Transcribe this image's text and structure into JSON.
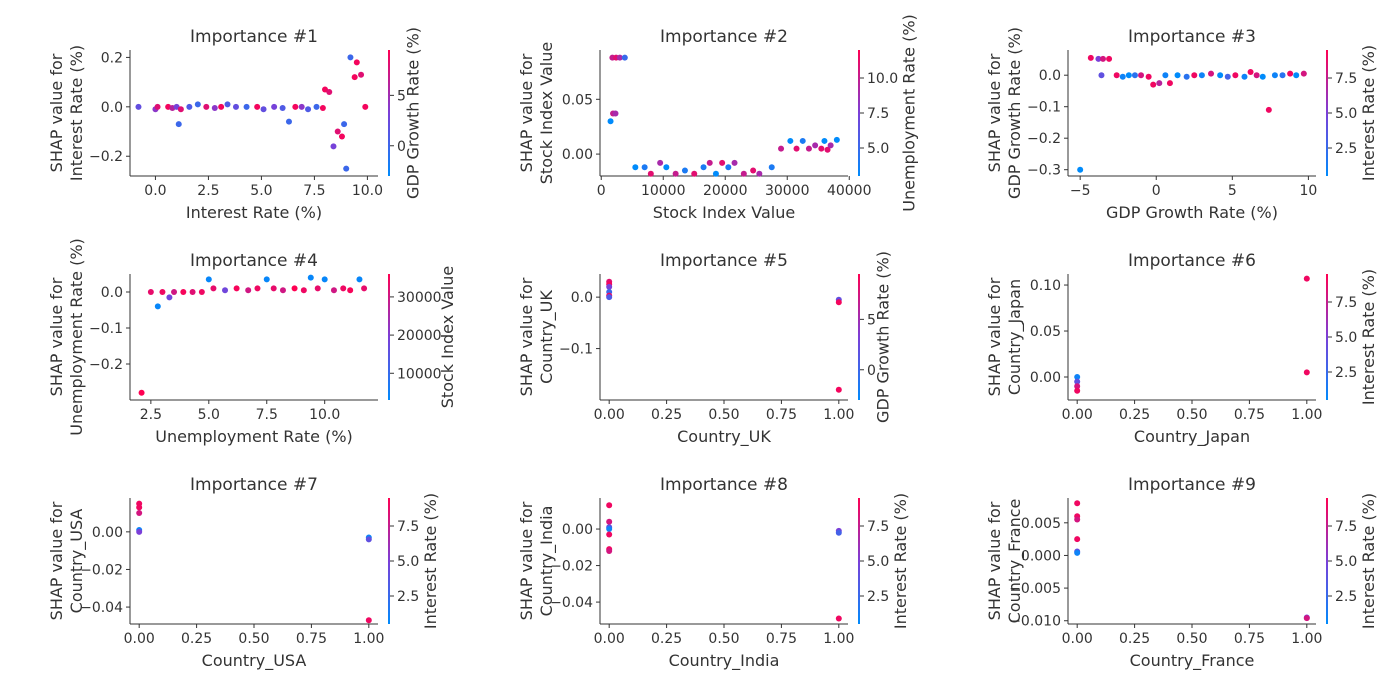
{
  "chart_data": [
    {
      "type": "scatter",
      "title": "Importance #1",
      "xlabel": "Interest Rate (%)",
      "ylabel": [
        "SHAP value for",
        "Interest Rate (%)"
      ],
      "xlim": [
        -1.2,
        10.5
      ],
      "ylim": [
        -0.28,
        0.23
      ],
      "xticks": [
        0,
        2.5,
        5,
        7.5,
        10
      ],
      "xtick_labels": [
        "0.0",
        "2.5",
        "5.0",
        "7.5",
        "10.0"
      ],
      "yticks": [
        -0.2,
        0,
        0.2
      ],
      "ytick_labels": [
        "−0.2",
        "0.0",
        "0.2"
      ],
      "colorbar": {
        "label": "GDP Growth Rate (%)",
        "min": -3,
        "max": 9.5,
        "ticks": [
          0,
          5
        ],
        "tick_labels": [
          "0",
          "5"
        ]
      },
      "points": [
        [
          -0.8,
          0.0,
          2
        ],
        [
          0.0,
          -0.01,
          4
        ],
        [
          0.1,
          0.0,
          8
        ],
        [
          0.6,
          0.0,
          9
        ],
        [
          0.8,
          -0.005,
          6
        ],
        [
          1.0,
          0.0,
          3
        ],
        [
          1.2,
          -0.01,
          8
        ],
        [
          1.1,
          -0.07,
          0
        ],
        [
          1.6,
          0.0,
          1
        ],
        [
          2.0,
          0.01,
          0
        ],
        [
          2.4,
          0.0,
          8
        ],
        [
          2.8,
          -0.005,
          4
        ],
        [
          3.1,
          0.0,
          9
        ],
        [
          3.4,
          0.01,
          1
        ],
        [
          3.8,
          0.0,
          2
        ],
        [
          4.3,
          0.0,
          0
        ],
        [
          4.8,
          0.0,
          9
        ],
        [
          5.1,
          -0.01,
          2
        ],
        [
          5.6,
          0.0,
          3
        ],
        [
          6.0,
          -0.005,
          1
        ],
        [
          6.3,
          -0.06,
          0
        ],
        [
          6.6,
          0.0,
          9
        ],
        [
          6.9,
          0.0,
          4
        ],
        [
          7.2,
          -0.01,
          1
        ],
        [
          7.6,
          0.0,
          0
        ],
        [
          7.9,
          -0.005,
          9
        ],
        [
          8.0,
          0.07,
          9
        ],
        [
          8.2,
          0.06,
          8
        ],
        [
          8.4,
          -0.16,
          3
        ],
        [
          8.6,
          -0.1,
          8
        ],
        [
          8.8,
          -0.12,
          9
        ],
        [
          8.9,
          -0.07,
          0
        ],
        [
          9.0,
          -0.25,
          0
        ],
        [
          9.2,
          0.2,
          0
        ],
        [
          9.4,
          0.12,
          9
        ],
        [
          9.5,
          0.18,
          9
        ],
        [
          9.7,
          0.13,
          8
        ],
        [
          9.9,
          0.0,
          9
        ]
      ]
    },
    {
      "type": "scatter",
      "title": "Importance #2",
      "xlabel": "Stock Index Value",
      "ylabel": [
        "SHAP value for",
        "Stock Index Value"
      ],
      "xlim": [
        -200,
        39800
      ],
      "ylim": [
        -0.02,
        0.095
      ],
      "xticks": [
        0,
        10000,
        20000,
        30000,
        40000
      ],
      "xtick_labels": [
        "0",
        "10000",
        "20000",
        "30000",
        "40000"
      ],
      "yticks": [
        0,
        0.05
      ],
      "ytick_labels": [
        "0.00",
        "0.05"
      ],
      "colorbar": {
        "label": "Unemployment Rate (%)",
        "min": 3,
        "max": 12,
        "ticks": [
          5,
          7.5,
          10
        ],
        "tick_labels": [
          "5.0",
          "7.5",
          "10.0"
        ]
      },
      "points": [
        [
          1800,
          0.088,
          10
        ],
        [
          2400,
          0.088,
          11
        ],
        [
          3000,
          0.088,
          9
        ],
        [
          3800,
          0.088,
          5
        ],
        [
          1500,
          0.03,
          3
        ],
        [
          1900,
          0.037,
          10
        ],
        [
          2300,
          0.037,
          9
        ],
        [
          5500,
          -0.012,
          3
        ],
        [
          7000,
          -0.012,
          4
        ],
        [
          8000,
          -0.018,
          11
        ],
        [
          9500,
          -0.008,
          9
        ],
        [
          10500,
          -0.012,
          3
        ],
        [
          12000,
          -0.018,
          10
        ],
        [
          13500,
          -0.015,
          4
        ],
        [
          15000,
          -0.018,
          11
        ],
        [
          16500,
          -0.012,
          4
        ],
        [
          17500,
          -0.008,
          10
        ],
        [
          18500,
          -0.018,
          3
        ],
        [
          19500,
          -0.008,
          11
        ],
        [
          20500,
          -0.012,
          4
        ],
        [
          21500,
          -0.008,
          9
        ],
        [
          23000,
          -0.018,
          10
        ],
        [
          24500,
          -0.015,
          11
        ],
        [
          25500,
          -0.018,
          9
        ],
        [
          27500,
          -0.012,
          4
        ],
        [
          29000,
          0.005,
          10
        ],
        [
          30500,
          0.012,
          3
        ],
        [
          31500,
          0.005,
          11
        ],
        [
          32500,
          0.012,
          4
        ],
        [
          33500,
          0.005,
          10
        ],
        [
          34500,
          0.008,
          9
        ],
        [
          35500,
          0.005,
          11
        ],
        [
          36000,
          0.012,
          3
        ],
        [
          36500,
          0.004,
          11
        ],
        [
          37000,
          0.008,
          9
        ],
        [
          38000,
          0.013,
          3
        ]
      ]
    },
    {
      "type": "scatter",
      "title": "Importance #3",
      "xlabel": "GDP Growth Rate (%)",
      "ylabel": [
        "SHAP value for",
        "GDP Growth Rate (%)"
      ],
      "xlim": [
        -5.8,
        10.5
      ],
      "ylim": [
        -0.32,
        0.08
      ],
      "xticks": [
        -5,
        0,
        5,
        10
      ],
      "xtick_labels": [
        "−5",
        "0",
        "5",
        "10"
      ],
      "yticks": [
        -0.3,
        -0.2,
        -0.1,
        0
      ],
      "ytick_labels": [
        "−0.3",
        "−0.2",
        "−0.1",
        "0.0"
      ],
      "colorbar": {
        "label": "Interest Rate (%)",
        "min": 0.5,
        "max": 9.5,
        "ticks": [
          2.5,
          5,
          7.5
        ],
        "tick_labels": [
          "2.5",
          "5.0",
          "7.5"
        ]
      },
      "points": [
        [
          -5,
          -0.3,
          0
        ],
        [
          -4.3,
          0.055,
          9
        ],
        [
          -3.8,
          0.052,
          5
        ],
        [
          -3.5,
          0.052,
          8
        ],
        [
          -3.1,
          0.052,
          9
        ],
        [
          -3.6,
          0.0,
          4
        ],
        [
          -2.6,
          0.0,
          9
        ],
        [
          -2.2,
          -0.005,
          1
        ],
        [
          -1.8,
          0.0,
          0
        ],
        [
          -1.4,
          0.0,
          2
        ],
        [
          -1.0,
          0.0,
          8
        ],
        [
          -0.5,
          -0.005,
          9
        ],
        [
          -0.2,
          -0.03,
          9
        ],
        [
          0.2,
          -0.025,
          7
        ],
        [
          0.6,
          0.0,
          1
        ],
        [
          0.9,
          -0.025,
          9
        ],
        [
          1.4,
          0.0,
          0
        ],
        [
          2.0,
          -0.005,
          2
        ],
        [
          2.5,
          0.0,
          9
        ],
        [
          3.0,
          0.0,
          1
        ],
        [
          3.6,
          0.005,
          8
        ],
        [
          4.2,
          0.0,
          0
        ],
        [
          4.7,
          -0.005,
          3
        ],
        [
          5.2,
          0.0,
          9
        ],
        [
          5.8,
          -0.005,
          1
        ],
        [
          6.2,
          0.01,
          9
        ],
        [
          6.6,
          0.0,
          8
        ],
        [
          7.0,
          -0.005,
          0
        ],
        [
          7.4,
          -0.11,
          9
        ],
        [
          7.8,
          0.0,
          1
        ],
        [
          8.3,
          0.0,
          2
        ],
        [
          8.8,
          0.005,
          9
        ],
        [
          9.2,
          0.0,
          0
        ],
        [
          9.7,
          0.005,
          8
        ]
      ]
    },
    {
      "type": "scatter",
      "title": "Importance #4",
      "xlabel": "Unemployment Rate (%)",
      "ylabel": [
        "SHAP value for",
        "Unemployment Rate (%)"
      ],
      "xlim": [
        1.6,
        12.3
      ],
      "ylim": [
        -0.3,
        0.05
      ],
      "xticks": [
        2.5,
        5,
        7.5,
        10
      ],
      "xtick_labels": [
        "2.5",
        "5.0",
        "7.5",
        "10.0"
      ],
      "yticks": [
        -0.2,
        -0.1,
        0
      ],
      "ytick_labels": [
        "−0.2",
        "−0.1",
        "0.0"
      ],
      "colorbar": {
        "label": "Stock Index Value",
        "min": 3000,
        "max": 36000,
        "ticks": [
          10000,
          20000,
          30000
        ],
        "tick_labels": [
          "10000",
          "20000",
          "30000"
        ]
      },
      "points": [
        [
          2.1,
          -0.28,
          36000
        ],
        [
          2.5,
          0.0,
          33000
        ],
        [
          2.8,
          -0.04,
          4000
        ],
        [
          3.0,
          0.0,
          34000
        ],
        [
          3.3,
          -0.015,
          18000
        ],
        [
          3.5,
          0.0,
          30000
        ],
        [
          3.9,
          0.0,
          35000
        ],
        [
          4.3,
          0.0,
          32000
        ],
        [
          4.7,
          0.0,
          34000
        ],
        [
          5.0,
          0.035,
          4000
        ],
        [
          5.2,
          0.01,
          33000
        ],
        [
          5.7,
          0.005,
          18000
        ],
        [
          6.2,
          0.01,
          35000
        ],
        [
          6.7,
          0.005,
          30000
        ],
        [
          7.1,
          0.01,
          34000
        ],
        [
          7.5,
          0.035,
          4000
        ],
        [
          7.8,
          0.01,
          33000
        ],
        [
          8.2,
          0.005,
          30000
        ],
        [
          8.7,
          0.01,
          36000
        ],
        [
          9.1,
          0.005,
          34000
        ],
        [
          9.4,
          0.04,
          4000
        ],
        [
          9.7,
          0.01,
          33000
        ],
        [
          10.0,
          0.035,
          4000
        ],
        [
          10.4,
          0.005,
          30000
        ],
        [
          10.8,
          0.01,
          34000
        ],
        [
          11.1,
          0.005,
          35000
        ],
        [
          11.5,
          0.035,
          4000
        ],
        [
          11.7,
          0.01,
          33000
        ]
      ]
    },
    {
      "type": "scatter",
      "title": "Importance #5",
      "xlabel": "Country_UK",
      "ylabel": [
        "SHAP value for",
        "Country_UK"
      ],
      "xlim": [
        -0.04,
        1.04
      ],
      "ylim": [
        -0.2,
        0.045
      ],
      "xticks": [
        0,
        0.25,
        0.5,
        0.75,
        1
      ],
      "xtick_labels": [
        "0.00",
        "0.25",
        "0.50",
        "0.75",
        "1.00"
      ],
      "yticks": [
        -0.1,
        0
      ],
      "ytick_labels": [
        "−0.1",
        "0.0"
      ],
      "colorbar": {
        "label": "GDP Growth Rate (%)",
        "min": -3,
        "max": 9.5,
        "ticks": [
          0,
          5
        ],
        "tick_labels": [
          "0",
          "5"
        ]
      },
      "points": [
        [
          0,
          0.03,
          8
        ],
        [
          0,
          0.025,
          9
        ],
        [
          0,
          0.02,
          3
        ],
        [
          0,
          0.01,
          0
        ],
        [
          0,
          0.003,
          9
        ],
        [
          0,
          0.0,
          1
        ],
        [
          1,
          -0.005,
          2
        ],
        [
          1,
          -0.01,
          9
        ],
        [
          1,
          -0.18,
          9
        ]
      ]
    },
    {
      "type": "scatter",
      "title": "Importance #6",
      "xlabel": "Country_Japan",
      "ylabel": [
        "SHAP value for",
        "Country_Japan"
      ],
      "xlim": [
        -0.04,
        1.04
      ],
      "ylim": [
        -0.025,
        0.112
      ],
      "xticks": [
        0,
        0.25,
        0.5,
        0.75,
        1
      ],
      "xtick_labels": [
        "0.00",
        "0.25",
        "0.50",
        "0.75",
        "1.00"
      ],
      "yticks": [
        0,
        0.05,
        0.1
      ],
      "ytick_labels": [
        "0.00",
        "0.05",
        "0.10"
      ],
      "colorbar": {
        "label": "Interest Rate (%)",
        "min": 0.5,
        "max": 9.5,
        "ticks": [
          2.5,
          5,
          7.5
        ],
        "tick_labels": [
          "2.5",
          "5.0",
          "7.5"
        ]
      },
      "points": [
        [
          0,
          0.0,
          1
        ],
        [
          0,
          -0.005,
          4
        ],
        [
          0,
          -0.01,
          8
        ],
        [
          0,
          -0.015,
          9
        ],
        [
          1,
          0.107,
          9
        ],
        [
          1,
          0.005,
          9
        ]
      ]
    },
    {
      "type": "scatter",
      "title": "Importance #7",
      "xlabel": "Country_USA",
      "ylabel": [
        "SHAP value for",
        "Country_USA"
      ],
      "xlim": [
        -0.04,
        1.04
      ],
      "ylim": [
        -0.049,
        0.018
      ],
      "xticks": [
        0,
        0.25,
        0.5,
        0.75,
        1
      ],
      "xtick_labels": [
        "0.00",
        "0.25",
        "0.50",
        "0.75",
        "1.00"
      ],
      "yticks": [
        -0.04,
        -0.02,
        0
      ],
      "ytick_labels": [
        "−0.04",
        "−0.02",
        "0.00"
      ],
      "colorbar": {
        "label": "Interest Rate (%)",
        "min": 0.5,
        "max": 9.5,
        "ticks": [
          2.5,
          5,
          7.5
        ],
        "tick_labels": [
          "2.5",
          "5.0",
          "7.5"
        ]
      },
      "points": [
        [
          0,
          0.015,
          9
        ],
        [
          0,
          0.013,
          9
        ],
        [
          0,
          0.01,
          8
        ],
        [
          0,
          0.001,
          1
        ],
        [
          0,
          0.0,
          5
        ],
        [
          1,
          -0.003,
          1
        ],
        [
          1,
          -0.004,
          4
        ],
        [
          1,
          -0.047,
          9
        ]
      ]
    },
    {
      "type": "scatter",
      "title": "Importance #8",
      "xlabel": "Country_India",
      "ylabel": [
        "SHAP value for",
        "Country_India"
      ],
      "xlim": [
        -0.04,
        1.04
      ],
      "ylim": [
        -0.052,
        0.017
      ],
      "xticks": [
        0,
        0.25,
        0.5,
        0.75,
        1
      ],
      "xtick_labels": [
        "0.00",
        "0.25",
        "0.50",
        "0.75",
        "1.00"
      ],
      "yticks": [
        -0.04,
        -0.02,
        0
      ],
      "ytick_labels": [
        "−0.04",
        "−0.02",
        "0.00"
      ],
      "colorbar": {
        "label": "Interest Rate (%)",
        "min": 0.5,
        "max": 9.5,
        "ticks": [
          2.5,
          5,
          7.5
        ],
        "tick_labels": [
          "2.5",
          "5.0",
          "7.5"
        ]
      },
      "points": [
        [
          0,
          0.013,
          9
        ],
        [
          0,
          0.004,
          8
        ],
        [
          0,
          0.001,
          4
        ],
        [
          0,
          0.0,
          1
        ],
        [
          0,
          -0.003,
          9
        ],
        [
          0,
          -0.011,
          9
        ],
        [
          0,
          -0.012,
          8
        ],
        [
          1,
          -0.001,
          5
        ],
        [
          1,
          -0.002,
          3
        ],
        [
          1,
          -0.049,
          9
        ]
      ]
    },
    {
      "type": "scatter",
      "title": "Importance #9",
      "xlabel": "Country_France",
      "ylabel": [
        "SHAP value for",
        "Country_France"
      ],
      "xlim": [
        -0.04,
        1.04
      ],
      "ylim": [
        -0.0105,
        0.0088
      ],
      "xticks": [
        0,
        0.25,
        0.5,
        0.75,
        1
      ],
      "xtick_labels": [
        "0.00",
        "0.25",
        "0.50",
        "0.75",
        "1.00"
      ],
      "yticks": [
        -0.01,
        -0.005,
        0,
        0.005
      ],
      "ytick_labels": [
        "−0.010",
        "−0.005",
        "0.000",
        "0.005"
      ],
      "colorbar": {
        "label": "Interest Rate (%)",
        "min": 0.5,
        "max": 9.5,
        "ticks": [
          2.5,
          5,
          7.5
        ],
        "tick_labels": [
          "2.5",
          "5.0",
          "7.5"
        ]
      },
      "points": [
        [
          0,
          0.008,
          9
        ],
        [
          0,
          0.006,
          9
        ],
        [
          0,
          0.0055,
          8
        ],
        [
          0,
          0.0025,
          9
        ],
        [
          0,
          0.0006,
          4
        ],
        [
          0,
          0.0004,
          1
        ],
        [
          1,
          -0.0095,
          5
        ],
        [
          1,
          -0.0096,
          8
        ]
      ]
    }
  ],
  "colors": {
    "low": "#008bfb",
    "high": "#ff0052",
    "axis": "#333333"
  }
}
